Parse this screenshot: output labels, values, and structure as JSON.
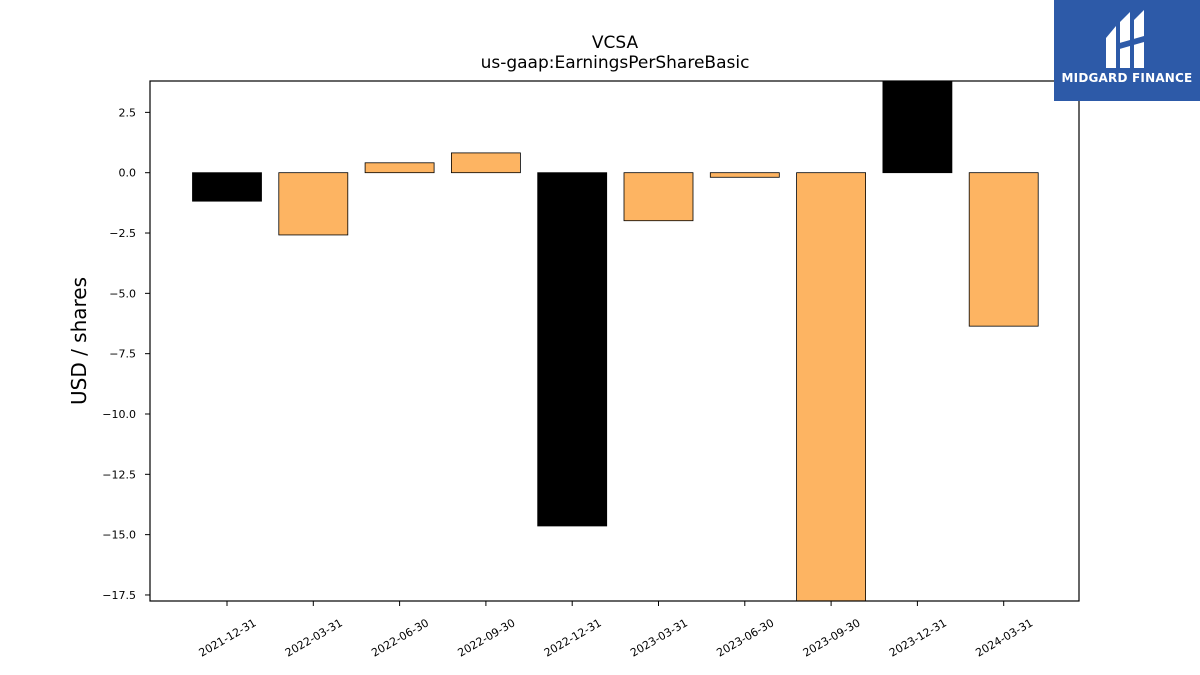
{
  "brand": {
    "name": "MIDGARD FINANCE",
    "bg_color": "#2d5aa8",
    "logo_icon": "midgard-logo-icon"
  },
  "chart_data": {
    "type": "bar",
    "title": "VCSA",
    "subtitle": "us-gaap:EarningsPerShareBasic",
    "xlabel": "",
    "ylabel": "USD / shares",
    "categories": [
      "2021-12-31",
      "2022-03-31",
      "2022-06-30",
      "2022-09-30",
      "2022-12-31",
      "2023-03-31",
      "2023-06-30",
      "2023-09-30",
      "2023-12-31",
      "2024-03-31"
    ],
    "values": [
      -1.18,
      -2.58,
      0.41,
      0.82,
      -14.64,
      -1.99,
      -0.19,
      -17.8,
      3.9,
      -6.36
    ],
    "bar_colors": [
      "#000000",
      "#fdb462",
      "#fdb462",
      "#fdb462",
      "#000000",
      "#fdb462",
      "#fdb462",
      "#fdb462",
      "#000000",
      "#fdb462"
    ],
    "ylim": [
      -17.75,
      3.8
    ],
    "yticks": [
      2.5,
      0.0,
      -2.5,
      -5.0,
      -7.5,
      -10.0,
      -12.5,
      -15.0,
      -17.5
    ],
    "ytick_labels": [
      "2.5",
      "0.0",
      "−2.5",
      "−5.0",
      "−7.5",
      "−10.0",
      "−12.5",
      "−15.0",
      "−17.5"
    ],
    "grid": false,
    "legend": "none"
  }
}
